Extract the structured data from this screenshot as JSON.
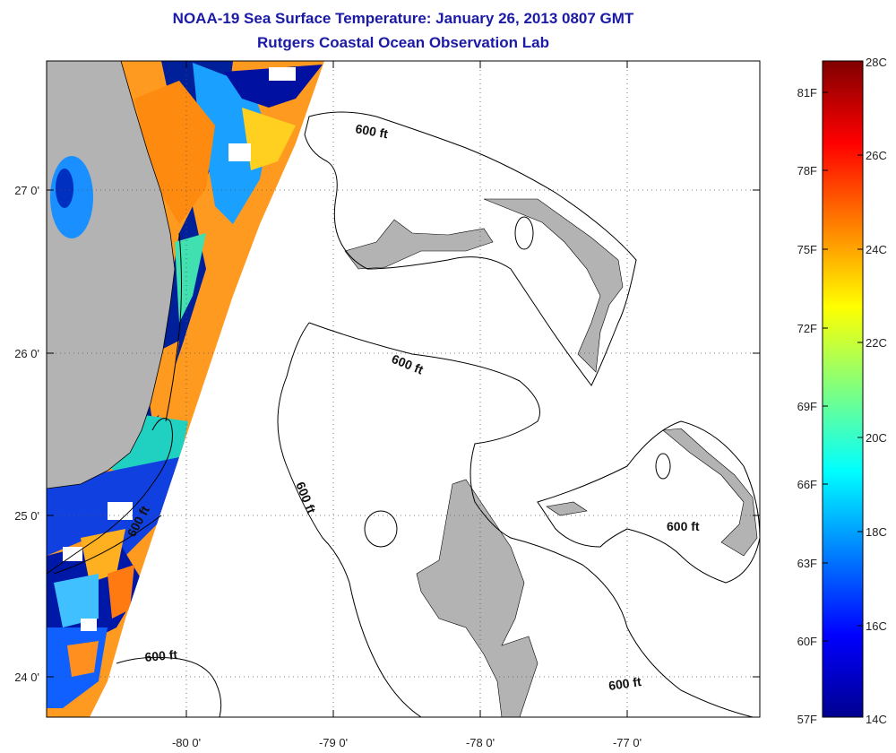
{
  "title": "NOAA-19 Sea Surface Temperature:  January 26, 2013 0807 GMT",
  "subtitle": "Rutgers Coastal Ocean Observation Lab",
  "map": {
    "lon_ticks": [
      "-80 0'",
      "-79 0'",
      "-78 0'",
      "-77 0'"
    ],
    "lat_ticks": [
      "27 0'",
      "26 0'",
      "25 0'",
      "24 0'"
    ],
    "contour_labels": [
      "600 ft",
      "600 ft",
      "600 ft",
      "600 ft",
      "600 ft",
      "600 ft"
    ],
    "land_color": "#b3b3b3",
    "ocean_color": "#ffffff"
  },
  "colorbar": {
    "fahrenheit_labels": [
      "81F",
      "78F",
      "75F",
      "72F",
      "69F",
      "66F",
      "63F",
      "60F",
      "57F"
    ],
    "celsius_labels": [
      "28C",
      "26C",
      "24C",
      "22C",
      "20C",
      "18C",
      "16C",
      "14C"
    ],
    "range_c": [
      14,
      28
    ],
    "colormap": "jet"
  }
}
